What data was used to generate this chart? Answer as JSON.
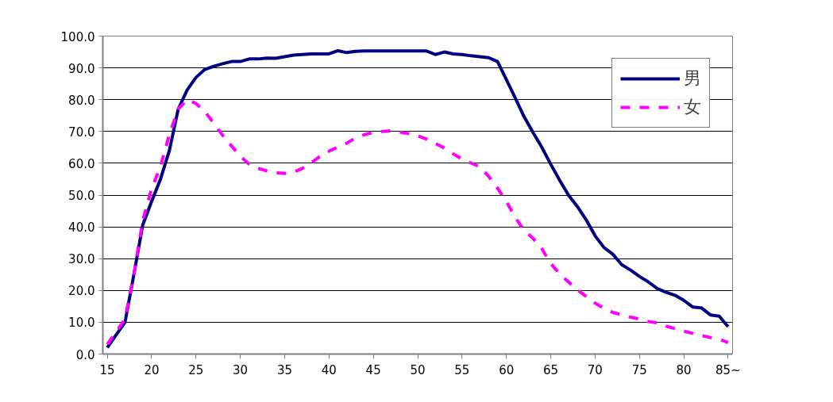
{
  "chart_data": {
    "type": "line",
    "x": [
      15,
      16,
      17,
      18,
      19,
      20,
      21,
      22,
      23,
      24,
      25,
      26,
      27,
      28,
      29,
      30,
      31,
      32,
      33,
      34,
      35,
      36,
      37,
      38,
      39,
      40,
      41,
      42,
      43,
      44,
      45,
      46,
      47,
      48,
      49,
      50,
      51,
      52,
      53,
      54,
      55,
      56,
      57,
      58,
      59,
      60,
      61,
      62,
      63,
      64,
      65,
      66,
      67,
      68,
      69,
      70,
      71,
      72,
      73,
      74,
      75,
      76,
      77,
      78,
      79,
      80,
      81,
      82,
      83,
      84,
      85
    ],
    "series": [
      {
        "name": "男",
        "color": "#000080",
        "line_style": "solid",
        "values": [
          2,
          6,
          10,
          25,
          40.6,
          48,
          55,
          64,
          77,
          83,
          87,
          89.5,
          90.5,
          91.3,
          92,
          92,
          92.8,
          92.8,
          93.1,
          93,
          93.5,
          94,
          94.2,
          94.4,
          94.4,
          94.4,
          95.4,
          94.8,
          95.2,
          95.3,
          95.3,
          95.3,
          95.3,
          95.3,
          95.3,
          95.3,
          95.3,
          94.2,
          95,
          94.4,
          94.2,
          93.8,
          93.5,
          93.2,
          92,
          86.3,
          80.5,
          74.6,
          69.7,
          65,
          59.7,
          54.7,
          50,
          46.4,
          42.2,
          37.2,
          33.5,
          31.4,
          28.1,
          26.4,
          24.4,
          22.7,
          20.6,
          19.4,
          18.5,
          16.9,
          14.8,
          14.5,
          12.3,
          11.9,
          8.6
        ]
      },
      {
        "name": "女",
        "color": "#ff00ff",
        "line_style": "dashed",
        "values": [
          3,
          7,
          11,
          25,
          42,
          52,
          59,
          69,
          77,
          80,
          78.8,
          76.3,
          72.6,
          68.8,
          65.5,
          62.2,
          59.7,
          58.4,
          57.6,
          57,
          56.8,
          57.2,
          58.4,
          60.1,
          62.2,
          63.8,
          65.1,
          66.3,
          68,
          69,
          69.7,
          70,
          70.2,
          69.8,
          69.3,
          68.6,
          67.6,
          66.2,
          64.8,
          63,
          61.3,
          60.1,
          58.9,
          55.9,
          52.2,
          48,
          43,
          38.9,
          36.4,
          33.1,
          28.5,
          25.2,
          22.7,
          20.2,
          18.1,
          16,
          14.4,
          13.1,
          12.3,
          11.6,
          11,
          10.2,
          9.8,
          8.8,
          8,
          7.2,
          6.5,
          5.8,
          5.2,
          4.7,
          3.6
        ]
      }
    ],
    "xlim": [
      14.5,
      85.5
    ],
    "xticks": [
      15,
      20,
      25,
      30,
      35,
      40,
      45,
      50,
      55,
      60,
      65,
      70,
      75,
      80,
      {
        "value": 85,
        "label": "85~"
      }
    ],
    "ylim": [
      0,
      100
    ],
    "yticks": [
      {
        "value": 0,
        "label": "0.0"
      },
      {
        "value": 10,
        "label": "10.0"
      },
      {
        "value": 20,
        "label": "20.0"
      },
      {
        "value": 30,
        "label": "30.0"
      },
      {
        "value": 40,
        "label": "40.0"
      },
      {
        "value": 50,
        "label": "50.0"
      },
      {
        "value": 60,
        "label": "60.0"
      },
      {
        "value": 70,
        "label": "70.0"
      },
      {
        "value": 80,
        "label": "80.0"
      },
      {
        "value": 90,
        "label": "90.0"
      },
      {
        "value": 100,
        "label": "100.0"
      }
    ],
    "grid": "y",
    "legend": "top right",
    "marker": "none"
  }
}
